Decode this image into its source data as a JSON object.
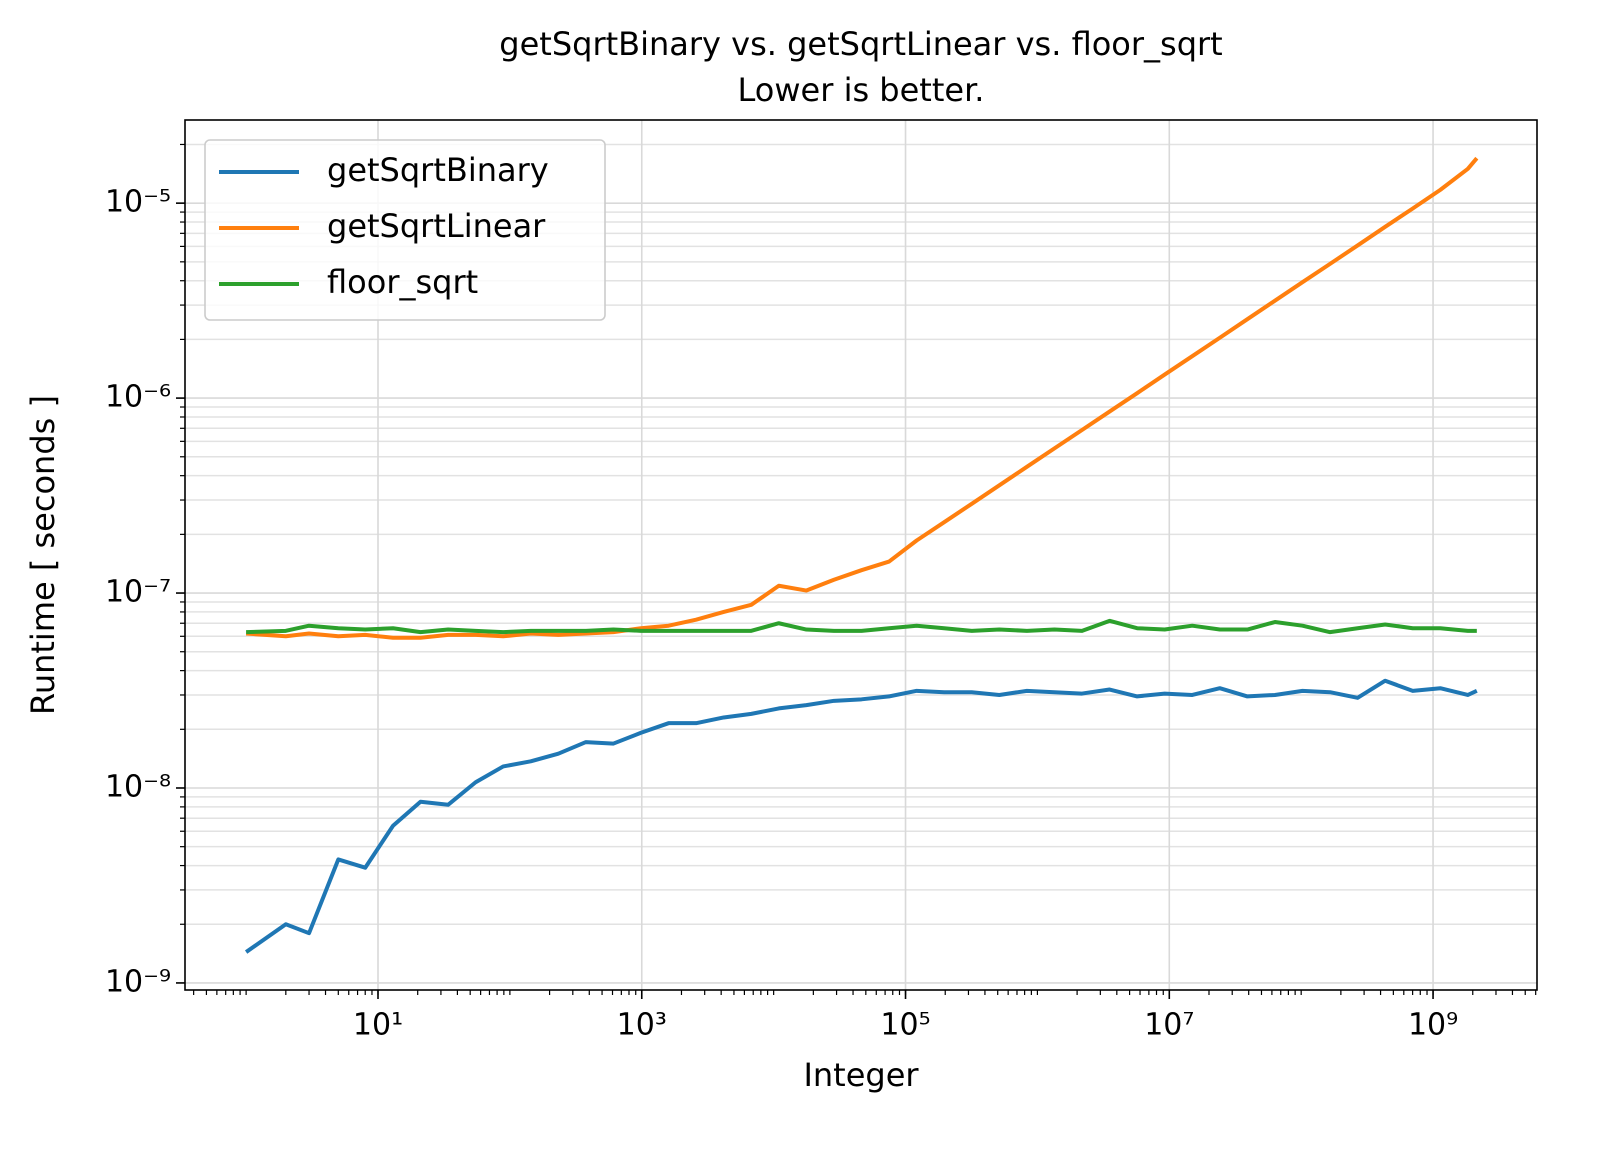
{
  "chart_data": {
    "type": "line",
    "title": "getSqrtBinary vs. getSqrtLinear vs. floor_sqrt",
    "subtitle": "Lower is better.",
    "xlabel": "Integer",
    "ylabel": "Runtime [ seconds ]",
    "xscale": "log",
    "yscale": "log",
    "grid": true,
    "minor_y_grid": true,
    "legend": "upper left",
    "x": [
      1,
      2,
      3,
      5,
      8,
      13,
      21,
      34,
      55,
      89,
      144,
      233,
      377,
      610,
      987,
      1597,
      2584,
      4181,
      6765,
      10946,
      17711,
      28657,
      46368,
      75025,
      121393,
      196418,
      317811,
      514229,
      832040,
      1346269,
      2178309,
      3524578,
      5702887,
      9227465,
      14930352,
      24157817,
      39088169,
      63245986,
      102334155,
      165580141,
      267914296,
      433494437,
      701408733,
      1134903170,
      1836311903,
      2147483647
    ],
    "series": [
      {
        "name": "getSqrtBinary",
        "color": "#1f77b4",
        "values": [
          1.44e-09,
          2e-09,
          1.8e-09,
          4.3e-09,
          3.9e-09,
          6.4e-09,
          8.5e-09,
          8.2e-09,
          1.07e-08,
          1.29e-08,
          1.37e-08,
          1.5e-08,
          1.72e-08,
          1.69e-08,
          1.92e-08,
          2.15e-08,
          2.15e-08,
          2.3e-08,
          2.4e-08,
          2.56e-08,
          2.66e-08,
          2.8e-08,
          2.85e-08,
          2.95e-08,
          3.15e-08,
          3.1e-08,
          3.1e-08,
          3e-08,
          3.15e-08,
          3.1e-08,
          3.05e-08,
          3.2e-08,
          2.95e-08,
          3.05e-08,
          3e-08,
          3.25e-08,
          2.95e-08,
          3e-08,
          3.15e-08,
          3.1e-08,
          2.9e-08,
          3.55e-08,
          3.15e-08,
          3.25e-08,
          3e-08,
          3.15e-08
        ]
      },
      {
        "name": "getSqrtLinear",
        "color": "#ff7f0e",
        "values": [
          6.2e-08,
          6e-08,
          6.2e-08,
          6e-08,
          6.1e-08,
          5.9e-08,
          5.9e-08,
          6.1e-08,
          6.1e-08,
          6e-08,
          6.2e-08,
          6.1e-08,
          6.2e-08,
          6.3e-08,
          6.6e-08,
          6.8e-08,
          7.3e-08,
          8e-08,
          8.7e-08,
          1.09e-07,
          1.03e-07,
          1.17e-07,
          1.31e-07,
          1.45e-07,
          1.86e-07,
          2.31e-07,
          2.87e-07,
          3.57e-07,
          4.44e-07,
          5.52e-07,
          6.86e-07,
          8.53e-07,
          1.06e-06,
          1.32e-06,
          1.64e-06,
          2.04e-06,
          2.54e-06,
          3.16e-06,
          3.93e-06,
          4.88e-06,
          6.07e-06,
          7.56e-06,
          9.39e-06,
          1.17e-05,
          1.5e-05,
          1.7e-05
        ]
      },
      {
        "name": "floor_sqrt",
        "color": "#2ca02c",
        "values": [
          6.3e-08,
          6.4e-08,
          6.8e-08,
          6.6e-08,
          6.5e-08,
          6.6e-08,
          6.3e-08,
          6.5e-08,
          6.4e-08,
          6.3e-08,
          6.4e-08,
          6.4e-08,
          6.4e-08,
          6.5e-08,
          6.4e-08,
          6.4e-08,
          6.4e-08,
          6.4e-08,
          6.4e-08,
          7e-08,
          6.5e-08,
          6.4e-08,
          6.4e-08,
          6.6e-08,
          6.8e-08,
          6.6e-08,
          6.4e-08,
          6.5e-08,
          6.4e-08,
          6.5e-08,
          6.4e-08,
          7.2e-08,
          6.6e-08,
          6.5e-08,
          6.8e-08,
          6.5e-08,
          6.5e-08,
          7.1e-08,
          6.8e-08,
          6.3e-08,
          6.6e-08,
          6.9e-08,
          6.6e-08,
          6.6e-08,
          6.4e-08,
          6.4e-08
        ]
      }
    ],
    "xlim": [
      0.344,
      6140000000.0
    ],
    "ylim": [
      9.2e-10,
      2.67e-05
    ],
    "xticks": [
      {
        "value": 10,
        "label": "10¹"
      },
      {
        "value": 1000,
        "label": "10³"
      },
      {
        "value": 100000,
        "label": "10⁵"
      },
      {
        "value": 10000000,
        "label": "10⁷"
      },
      {
        "value": 1000000000,
        "label": "10⁹"
      }
    ],
    "yticks": [
      {
        "value": 1e-09,
        "label": "10⁻⁹"
      },
      {
        "value": 1e-08,
        "label": "10⁻⁸"
      },
      {
        "value": 1e-07,
        "label": "10⁻⁷"
      },
      {
        "value": 1e-06,
        "label": "10⁻⁶"
      },
      {
        "value": 1e-05,
        "label": "10⁻⁵"
      }
    ]
  }
}
